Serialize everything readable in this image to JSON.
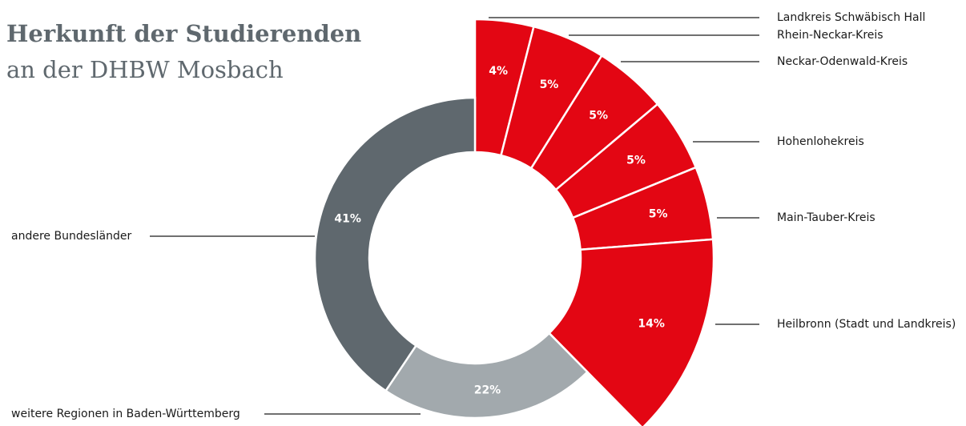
{
  "chart_data": {
    "type": "pie",
    "donut": true,
    "title": "Herkunft der Studierenden",
    "subtitle": "an der DHBW Mosbach",
    "categories": [
      "Landkreis Schwäbisch Hall",
      "Rhein-Neckar-Kreis",
      "Neckar-Odenwald-Kreis",
      "Hohenlohekreis",
      "Main-Tauber-Kreis",
      "Heilbronn (Stadt und Landkreis)",
      "weitere Regionen in Baden-Württemberg",
      "andere Bundesländer"
    ],
    "values": [
      4,
      5,
      5,
      5,
      5,
      14,
      22,
      41
    ],
    "value_labels": [
      "4%",
      "5%",
      "5%",
      "5%",
      "5%",
      "14%",
      "22%",
      "41%"
    ],
    "colors": [
      "#e30613",
      "#e30613",
      "#e30613",
      "#e30613",
      "#e30613",
      "#e30613",
      "#a2a9ad",
      "#5f686e"
    ]
  }
}
